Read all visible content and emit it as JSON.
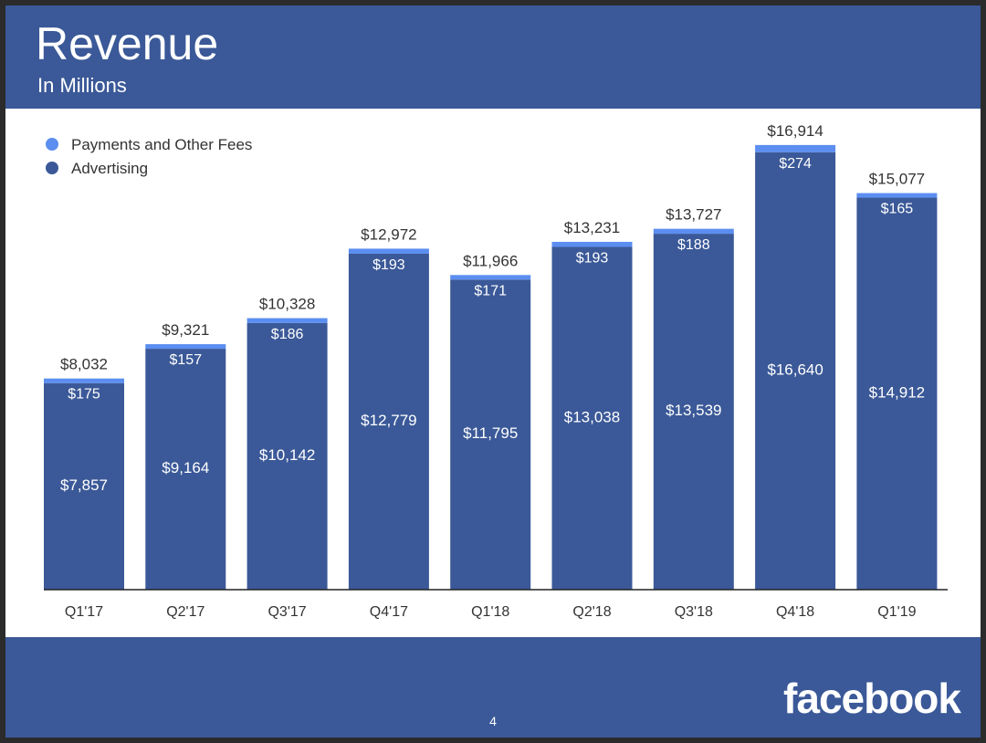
{
  "header": {
    "title": "Revenue",
    "subtitle": "In Millions"
  },
  "footer": {
    "page_number": "4",
    "logo_text": "facebook"
  },
  "colors": {
    "background": "#3b5998",
    "advertising": "#3b5998",
    "payments": "#5b8ef0",
    "panel": "#ffffff",
    "text": "#333333"
  },
  "chart_data": {
    "type": "bar",
    "stacked": true,
    "categories": [
      "Q1'17",
      "Q2'17",
      "Q3'17",
      "Q4'17",
      "Q1'18",
      "Q2'18",
      "Q3'18",
      "Q4'18",
      "Q1'19"
    ],
    "series": [
      {
        "name": "Advertising",
        "values": [
          7857,
          9164,
          10142,
          12779,
          11795,
          13038,
          13539,
          16640,
          14912
        ],
        "labels": [
          "$7,857",
          "$9,164",
          "$10,142",
          "$12,779",
          "$11,795",
          "$13,038",
          "$13,539",
          "$16,640",
          "$14,912"
        ],
        "color": "#3b5998"
      },
      {
        "name": "Payments and Other Fees",
        "values": [
          175,
          157,
          186,
          193,
          171,
          193,
          188,
          274,
          165
        ],
        "labels": [
          "$175",
          "$157",
          "$186",
          "$193",
          "$171",
          "$193",
          "$188",
          "$274",
          "$165"
        ],
        "color": "#5b8ef0"
      }
    ],
    "totals": [
      8032,
      9321,
      10328,
      12972,
      11966,
      13231,
      13727,
      16914,
      15077
    ],
    "total_labels": [
      "$8,032",
      "$9,321",
      "$10,328",
      "$12,972",
      "$11,966",
      "$13,231",
      "$13,727",
      "$16,914",
      "$15,077"
    ],
    "legend": {
      "placement": "top-left",
      "entries": [
        "Payments and Other Fees",
        "Advertising"
      ]
    },
    "ylim": [
      0,
      17000
    ],
    "grid": false,
    "xlabel": "",
    "ylabel": ""
  }
}
